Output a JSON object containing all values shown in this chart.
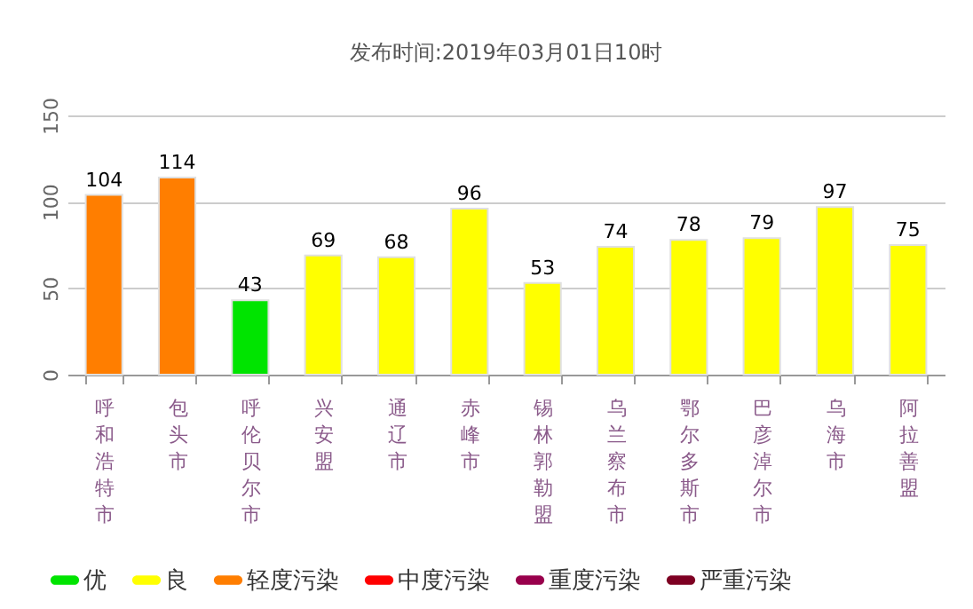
{
  "chart_data": {
    "type": "bar",
    "title": "发布时间:2019年03月01日10时",
    "categories": [
      "呼和浩特市",
      "包头市",
      "呼伦贝尔市",
      "兴安盟",
      "通辽市",
      "赤峰市",
      "锡林郭勒盟",
      "乌兰察布市",
      "鄂尔多斯市",
      "巴彦淖尔市",
      "乌海市",
      "阿拉善盟"
    ],
    "series": [
      {
        "name": "优",
        "color": "#00e400",
        "values": [
          null,
          null,
          43,
          null,
          null,
          null,
          null,
          null,
          null,
          null,
          null,
          null
        ]
      },
      {
        "name": "良",
        "color": "#ffff00",
        "values": [
          null,
          null,
          null,
          69,
          68,
          96,
          53,
          74,
          78,
          79,
          97,
          75
        ]
      },
      {
        "name": "轻度污染",
        "color": "#ff7e00",
        "values": [
          104,
          114,
          null,
          null,
          null,
          null,
          null,
          null,
          null,
          null,
          null,
          null
        ]
      },
      {
        "name": "中度污染",
        "color": "#ff0000",
        "values": [
          null,
          null,
          null,
          null,
          null,
          null,
          null,
          null,
          null,
          null,
          null,
          null
        ]
      },
      {
        "name": "重度污染",
        "color": "#99004c",
        "values": [
          null,
          null,
          null,
          null,
          null,
          null,
          null,
          null,
          null,
          null,
          null,
          null
        ]
      },
      {
        "name": "严重污染",
        "color": "#7e0023",
        "values": [
          null,
          null,
          null,
          null,
          null,
          null,
          null,
          null,
          null,
          null,
          null,
          null
        ]
      }
    ],
    "ylim": [
      0,
      150
    ],
    "yticks": [
      0,
      50,
      100,
      150
    ],
    "grid": "y",
    "data_labels": true,
    "legend": "bottom"
  }
}
